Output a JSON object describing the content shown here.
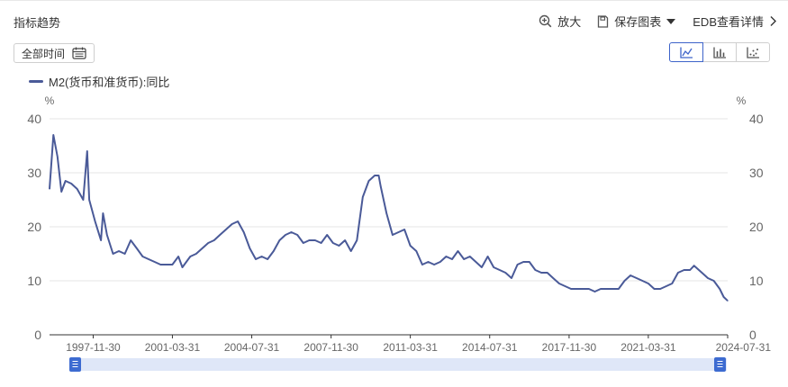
{
  "header": {
    "title": "指标趋势",
    "zoom_label": "放大",
    "save_label": "保存图表",
    "edb_label": "EDB查看详情"
  },
  "controls": {
    "range_label": "全部时间",
    "chart_types": [
      "line-chart-icon",
      "bar-chart-icon",
      "scatter-chart-icon"
    ],
    "active_type": "line"
  },
  "colors": {
    "series": "#4a5a98",
    "slider_handle": "#3d6bd1",
    "slider_track": "#dfe7f8",
    "grid": "#e6e6e6"
  },
  "chart_data": {
    "type": "line",
    "title": "",
    "y_unit_left": "%",
    "y_unit_right": "%",
    "ylim": [
      0,
      40
    ],
    "yticks": [
      0,
      10,
      20,
      30,
      40
    ],
    "xlim": [
      "1996-01-31",
      "2024-07-31"
    ],
    "xticks": [
      "1997-11-30",
      "2001-03-31",
      "2004-07-31",
      "2007-11-30",
      "2011-03-31",
      "2014-07-31",
      "2017-11-30",
      "2021-03-31",
      "2024-07-31"
    ],
    "grid": true,
    "legend": "top-left",
    "series": [
      {
        "name": "M2(货币和准货币):同比",
        "points": [
          [
            "1996-01-31",
            27.0
          ],
          [
            "1996-03-31",
            37.0
          ],
          [
            "1996-05-31",
            33.0
          ],
          [
            "1996-07-31",
            26.5
          ],
          [
            "1996-09-31",
            28.5
          ],
          [
            "1996-12-31",
            28.0
          ],
          [
            "1997-03-31",
            27.0
          ],
          [
            "1997-06-30",
            25.0
          ],
          [
            "1997-08-31",
            34.0
          ],
          [
            "1997-09-30",
            25.0
          ],
          [
            "1997-12-31",
            21.0
          ],
          [
            "1998-03-31",
            17.5
          ],
          [
            "1998-04-30",
            22.5
          ],
          [
            "1998-06-30",
            18.5
          ],
          [
            "1998-09-30",
            15.0
          ],
          [
            "1998-12-31",
            15.5
          ],
          [
            "1999-03-31",
            15.0
          ],
          [
            "1999-06-30",
            17.5
          ],
          [
            "1999-09-30",
            16.0
          ],
          [
            "1999-12-31",
            14.5
          ],
          [
            "2000-03-31",
            14.0
          ],
          [
            "2000-06-30",
            13.5
          ],
          [
            "2000-09-30",
            13.0
          ],
          [
            "2000-12-31",
            13.0
          ],
          [
            "2001-03-31",
            13.0
          ],
          [
            "2001-06-30",
            14.5
          ],
          [
            "2001-08-31",
            12.5
          ],
          [
            "2001-12-31",
            14.5
          ],
          [
            "2002-03-31",
            15.0
          ],
          [
            "2002-06-30",
            16.0
          ],
          [
            "2002-09-30",
            17.0
          ],
          [
            "2002-12-31",
            17.5
          ],
          [
            "2003-03-31",
            18.5
          ],
          [
            "2003-06-30",
            19.5
          ],
          [
            "2003-09-30",
            20.5
          ],
          [
            "2003-12-31",
            21.0
          ],
          [
            "2004-03-31",
            19.0
          ],
          [
            "2004-06-30",
            16.0
          ],
          [
            "2004-09-30",
            14.0
          ],
          [
            "2004-12-31",
            14.5
          ],
          [
            "2005-03-31",
            14.0
          ],
          [
            "2005-06-30",
            15.5
          ],
          [
            "2005-09-30",
            17.5
          ],
          [
            "2005-12-31",
            18.5
          ],
          [
            "2006-03-31",
            19.0
          ],
          [
            "2006-06-30",
            18.5
          ],
          [
            "2006-09-30",
            17.0
          ],
          [
            "2006-12-31",
            17.5
          ],
          [
            "2007-03-31",
            17.5
          ],
          [
            "2007-06-30",
            17.0
          ],
          [
            "2007-09-30",
            18.5
          ],
          [
            "2007-12-31",
            17.0
          ],
          [
            "2008-03-31",
            16.5
          ],
          [
            "2008-06-30",
            17.5
          ],
          [
            "2008-09-30",
            15.5
          ],
          [
            "2008-12-31",
            17.5
          ],
          [
            "2009-03-31",
            25.5
          ],
          [
            "2009-06-30",
            28.5
          ],
          [
            "2009-09-30",
            29.5
          ],
          [
            "2009-11-30",
            29.5
          ],
          [
            "2009-12-31",
            27.5
          ],
          [
            "2010-03-31",
            22.5
          ],
          [
            "2010-06-30",
            18.5
          ],
          [
            "2010-09-30",
            19.0
          ],
          [
            "2010-12-31",
            19.5
          ],
          [
            "2011-03-31",
            16.5
          ],
          [
            "2011-06-30",
            15.5
          ],
          [
            "2011-09-30",
            13.0
          ],
          [
            "2011-12-31",
            13.5
          ],
          [
            "2012-03-31",
            13.0
          ],
          [
            "2012-06-30",
            13.5
          ],
          [
            "2012-09-30",
            14.5
          ],
          [
            "2012-12-31",
            14.0
          ],
          [
            "2013-03-31",
            15.5
          ],
          [
            "2013-06-30",
            14.0
          ],
          [
            "2013-09-30",
            14.5
          ],
          [
            "2013-12-31",
            13.5
          ],
          [
            "2014-03-31",
            12.5
          ],
          [
            "2014-06-30",
            14.5
          ],
          [
            "2014-09-30",
            12.5
          ],
          [
            "2014-12-31",
            12.0
          ],
          [
            "2015-03-31",
            11.5
          ],
          [
            "2015-06-30",
            10.5
          ],
          [
            "2015-09-30",
            13.0
          ],
          [
            "2015-12-31",
            13.5
          ],
          [
            "2016-03-31",
            13.5
          ],
          [
            "2016-06-30",
            12.0
          ],
          [
            "2016-09-30",
            11.5
          ],
          [
            "2016-12-31",
            11.5
          ],
          [
            "2017-03-31",
            10.5
          ],
          [
            "2017-06-30",
            9.5
          ],
          [
            "2017-09-30",
            9.0
          ],
          [
            "2017-12-31",
            8.5
          ],
          [
            "2018-03-31",
            8.5
          ],
          [
            "2018-06-30",
            8.5
          ],
          [
            "2018-09-30",
            8.5
          ],
          [
            "2018-12-31",
            8.0
          ],
          [
            "2019-03-31",
            8.5
          ],
          [
            "2019-06-30",
            8.5
          ],
          [
            "2019-09-30",
            8.5
          ],
          [
            "2019-12-31",
            8.5
          ],
          [
            "2020-03-31",
            10.0
          ],
          [
            "2020-06-30",
            11.0
          ],
          [
            "2020-09-30",
            10.5
          ],
          [
            "2020-12-31",
            10.0
          ],
          [
            "2021-03-31",
            9.5
          ],
          [
            "2021-06-30",
            8.5
          ],
          [
            "2021-09-30",
            8.5
          ],
          [
            "2021-12-31",
            9.0
          ],
          [
            "2022-03-31",
            9.5
          ],
          [
            "2022-06-30",
            11.5
          ],
          [
            "2022-09-30",
            12.0
          ],
          [
            "2022-12-31",
            12.0
          ],
          [
            "2023-02-28",
            12.8
          ],
          [
            "2023-06-30",
            11.5
          ],
          [
            "2023-09-30",
            10.5
          ],
          [
            "2023-12-31",
            10.0
          ],
          [
            "2024-03-31",
            8.5
          ],
          [
            "2024-05-31",
            7.0
          ],
          [
            "2024-07-31",
            6.3
          ]
        ]
      }
    ]
  }
}
